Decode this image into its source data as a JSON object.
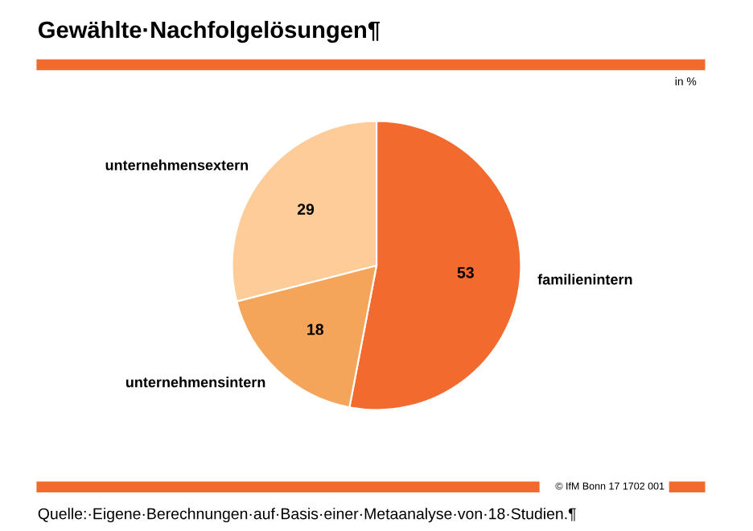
{
  "chart_data": {
    "type": "pie",
    "title": "Gewählte·Nachfolgelösungen¶",
    "categories": [
      "familienintern",
      "unternehmensintern",
      "unternehmensextern"
    ],
    "values": [
      53,
      18,
      29
    ],
    "colors": [
      "#f26a2e",
      "#f5a55a",
      "#fdcc99"
    ],
    "data_labels": true,
    "legend": false,
    "annotations": [
      "in %",
      "© IfM Bonn 17 1702 001",
      "Quelle:·Eigene·Berechnungen·auf·Basis·einer·Metaanalyse·von·18·Studien.¶"
    ]
  }
}
